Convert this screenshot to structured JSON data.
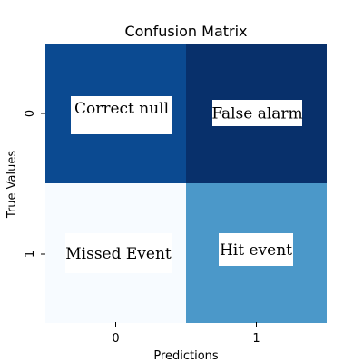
{
  "chart_data": {
    "type": "heatmap",
    "title": "Confusion Matrix",
    "xlabel": "Predictions",
    "ylabel": "True Values",
    "x_categories": [
      "0",
      "1"
    ],
    "y_categories": [
      "0",
      "1"
    ],
    "cell_labels": [
      [
        "Correct null",
        "False alarm"
      ],
      [
        "Missed Event",
        "Hit event"
      ]
    ],
    "colors": [
      [
        "#0b4a91",
        "#08306b"
      ],
      [
        "#f7fbff",
        "#4b98c9"
      ]
    ],
    "colormap": "Blues",
    "colorbar": false,
    "grid": false
  }
}
